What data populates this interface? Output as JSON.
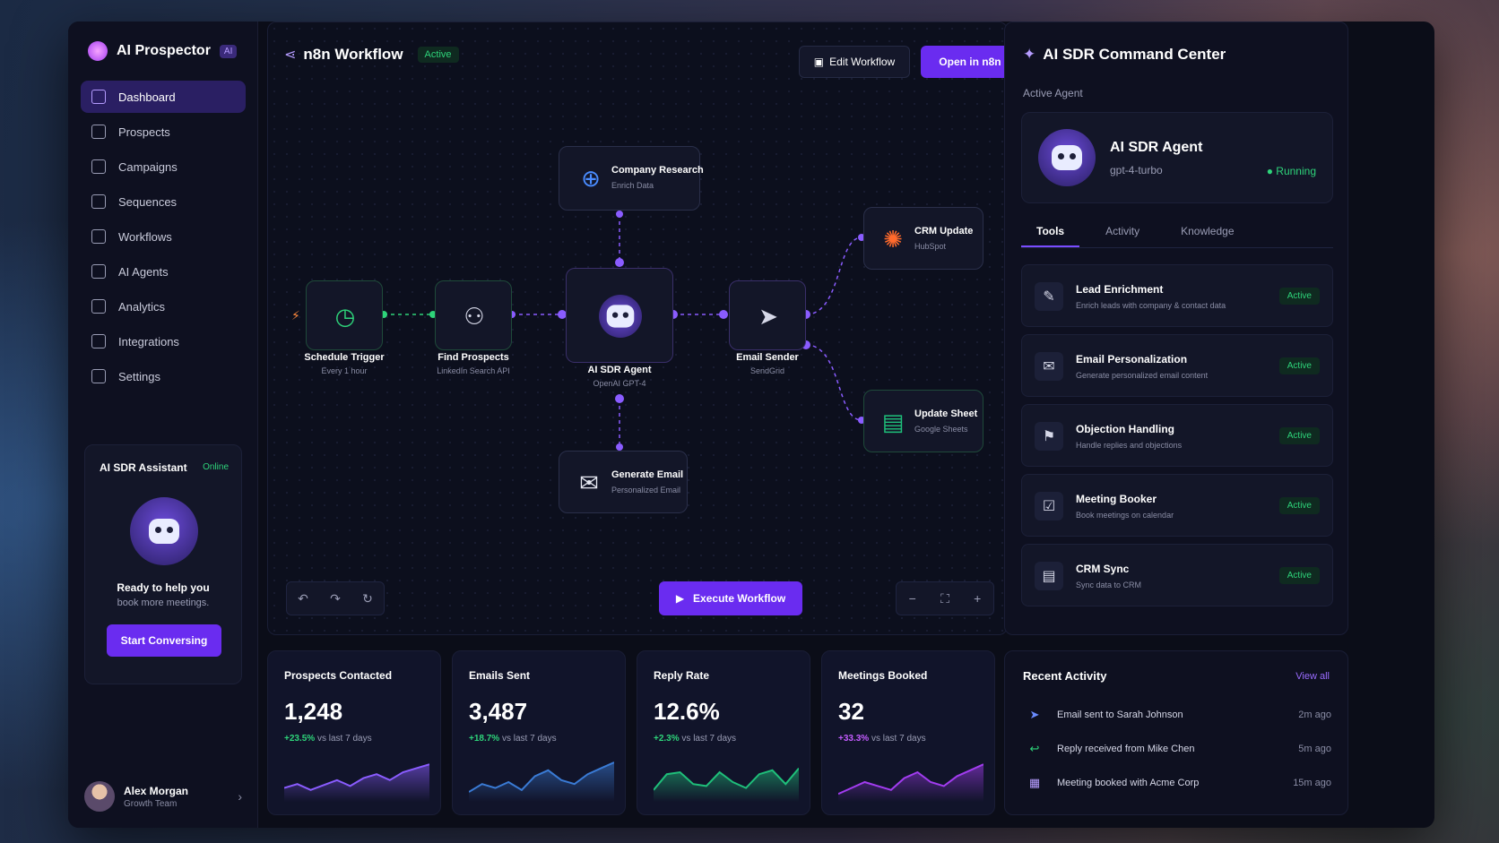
{
  "brand": {
    "name": "AI Prospector",
    "badge": "AI"
  },
  "sidebar": {
    "items": [
      {
        "label": "Dashboard",
        "icon": "dashboard-icon",
        "active": true
      },
      {
        "label": "Prospects",
        "icon": "user-icon"
      },
      {
        "label": "Campaigns",
        "icon": "campaign-icon"
      },
      {
        "label": "Sequences",
        "icon": "sequence-icon"
      },
      {
        "label": "Workflows",
        "icon": "workflow-icon"
      },
      {
        "label": "AI Agents",
        "icon": "agent-icon"
      },
      {
        "label": "Analytics",
        "icon": "analytics-icon"
      },
      {
        "label": "Integrations",
        "icon": "integrations-icon"
      },
      {
        "label": "Settings",
        "icon": "gear-icon"
      }
    ],
    "assistant": {
      "title": "AI SDR Assistant",
      "status": "Online",
      "line1": "Ready to help you",
      "line2": "book more meetings.",
      "button": "Start Conversing"
    },
    "user": {
      "name": "Alex Morgan",
      "team": "Growth Team"
    }
  },
  "workflow": {
    "title": "n8n Workflow",
    "status": "Active",
    "edit_label": "Edit Workflow",
    "open_label": "Open in n8n",
    "execute_label": "Execute Workflow",
    "nodes": {
      "schedule": {
        "label": "Schedule Trigger",
        "sub": "Every 1 hour"
      },
      "find": {
        "label": "Find Prospects",
        "sub": "LinkedIn Search API"
      },
      "agent": {
        "label": "AI SDR Agent",
        "sub": "OpenAI GPT-4"
      },
      "research": {
        "label": "Company Research",
        "sub": "Enrich Data"
      },
      "generate": {
        "label": "Generate Email",
        "sub": "Personalized Email"
      },
      "sender": {
        "label": "Email Sender",
        "sub": "SendGrid"
      },
      "crm": {
        "label": "CRM Update",
        "sub": "HubSpot"
      },
      "sheet": {
        "label": "Update Sheet",
        "sub": "Google Sheets"
      }
    }
  },
  "command_center": {
    "title": "AI SDR Command Center",
    "active_agent_label": "Active Agent",
    "agent": {
      "name": "AI SDR Agent",
      "model": "gpt-4-turbo",
      "status": "Running"
    },
    "tabs": [
      "Tools",
      "Activity",
      "Knowledge"
    ],
    "tools": [
      {
        "name": "Lead Enrichment",
        "desc": "Enrich leads with company & contact data",
        "status": "Active",
        "icon": "enrich-icon"
      },
      {
        "name": "Email Personalization",
        "desc": "Generate personalized email content",
        "status": "Active",
        "icon": "email-edit-icon"
      },
      {
        "name": "Objection Handling",
        "desc": "Handle replies and objections",
        "status": "Active",
        "icon": "objection-icon"
      },
      {
        "name": "Meeting Booker",
        "desc": "Book meetings on calendar",
        "status": "Active",
        "icon": "calendar-icon"
      },
      {
        "name": "CRM Sync",
        "desc": "Sync data to CRM",
        "status": "Active",
        "icon": "document-icon"
      }
    ]
  },
  "stats": [
    {
      "title": "Prospects Contacted",
      "value": "1,248",
      "delta": "+23.5%",
      "delta_text": "vs last 7 days",
      "color": "#8a5cff",
      "trend": [
        14,
        18,
        12,
        17,
        22,
        16,
        24,
        28,
        22,
        30,
        34,
        38
      ]
    },
    {
      "title": "Emails Sent",
      "value": "3,487",
      "delta": "+18.7%",
      "delta_text": "vs last 7 days",
      "color": "#3a7bd5",
      "trend": [
        10,
        18,
        14,
        20,
        12,
        26,
        32,
        22,
        18,
        28,
        34,
        40
      ]
    },
    {
      "title": "Reply Rate",
      "value": "12.6%",
      "delta": "+2.3%",
      "delta_text": "vs last 7 days",
      "color": "#1fbf7a",
      "trend": [
        12,
        28,
        30,
        18,
        16,
        30,
        20,
        14,
        28,
        32,
        18,
        34
      ]
    },
    {
      "title": "Meetings Booked",
      "value": "32",
      "delta": "+33.3%",
      "delta_text": "vs last 7 days",
      "color": "#a23cf0",
      "trend": [
        8,
        14,
        20,
        16,
        12,
        24,
        30,
        20,
        16,
        26,
        32,
        38
      ]
    }
  ],
  "recent": {
    "title": "Recent Activity",
    "view_all": "View all",
    "items": [
      {
        "text": "Email sent to Sarah Johnson",
        "time": "2m ago",
        "icon": "send-icon",
        "color": "#6a8cff"
      },
      {
        "text": "Reply received from Mike Chen",
        "time": "5m ago",
        "icon": "reply-icon",
        "color": "#2ed47a"
      },
      {
        "text": "Meeting booked with Acme Corp",
        "time": "15m ago",
        "icon": "calendar-icon",
        "color": "#b59cff"
      }
    ]
  },
  "colors": {
    "accent": "#6a2cf0",
    "success": "#2ed47a",
    "panel": "#131628"
  }
}
